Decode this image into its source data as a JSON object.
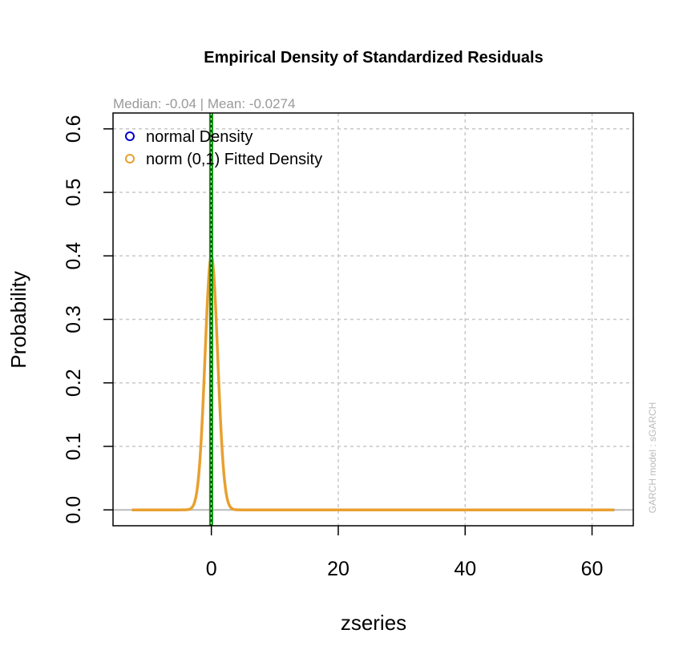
{
  "chart_data": {
    "type": "line",
    "title": "Empirical Density of Standardized Residuals",
    "subtitle": "Median:  -0.04 | Mean:  -0.0274",
    "xlabel": "zseries",
    "ylabel": "Probability",
    "side_note": "GARCH model :  sGARCH",
    "xlim": [
      -15.5,
      66.5
    ],
    "ylim": [
      -0.025,
      0.625
    ],
    "x_ticks": [
      0,
      20,
      40,
      60
    ],
    "x_tick_labels": [
      "0",
      "20",
      "40",
      "60"
    ],
    "y_ticks": [
      0.0,
      0.1,
      0.2,
      0.3,
      0.4,
      0.5,
      0.6
    ],
    "y_tick_labels": [
      "0.0",
      "0.1",
      "0.2",
      "0.3",
      "0.4",
      "0.5",
      "0.6"
    ],
    "grid": true,
    "legend_position": "top-left",
    "x_range_of_curves": [
      -12.5,
      63.5
    ],
    "series": [
      {
        "name": "normal Density",
        "color": "#0000cc",
        "distribution": "normal",
        "mean": -0.0274,
        "sd": 1.0
      },
      {
        "name": "norm (0,1) Fitted Density",
        "color": "#e8a030",
        "distribution": "normal",
        "mean": 0.0,
        "sd": 1.0
      }
    ],
    "vertical_lines": [
      {
        "kind": "median",
        "x": -0.04,
        "color": "#00aa00"
      },
      {
        "kind": "mean",
        "x": -0.0274,
        "color": "#003300"
      }
    ],
    "baseline": {
      "y": 0,
      "color": "#bbbbbb"
    }
  }
}
